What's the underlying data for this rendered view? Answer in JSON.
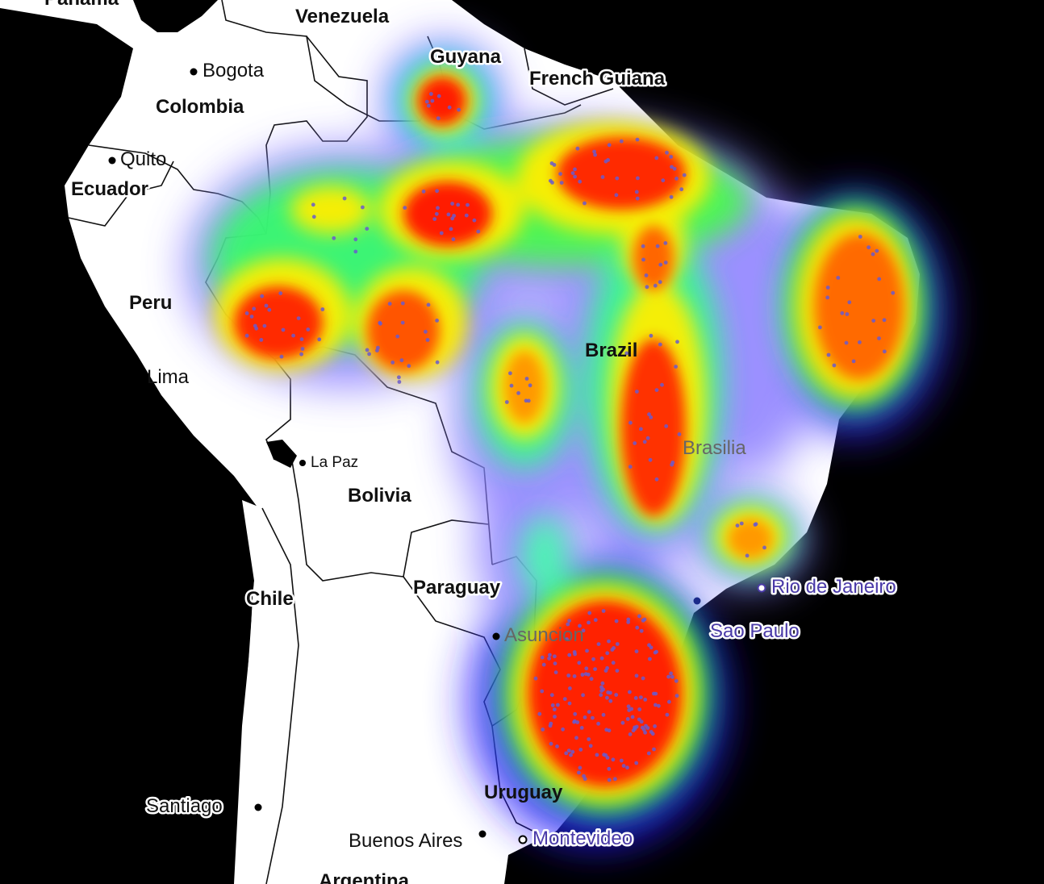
{
  "countries": {
    "venezuela": "Venezuela",
    "guyana": "Guyana",
    "french_guiana": "French Guiana",
    "colombia": "Colombia",
    "ecuador": "Ecuador",
    "peru": "Peru",
    "brazil": "Brazil",
    "bolivia": "Bolivia",
    "paraguay": "Paraguay",
    "chile": "Chile",
    "uruguay": "Uruguay",
    "argentina": "Argentina",
    "panama": "Panama"
  },
  "cities": {
    "bogota": "Bogota",
    "quito": "Quito",
    "lima": "Lima",
    "la_paz": "La Paz",
    "brasilia": "Brasilia",
    "rio": "Rio de Janeiro",
    "sao_paulo": "Sao Paulo",
    "asuncion": "Asuncion",
    "santiago": "Santiago",
    "buenos_aires": "Buenos Aires",
    "montevideo": "Montevideo"
  },
  "colors": {
    "land": "#ffffff",
    "ocean": "#000000",
    "heat_high": "#ff0000",
    "heat_mid": "#ffff00",
    "heat_low": "#00ff00",
    "heat_edge": "#0000ff",
    "point": "#6a5acd"
  }
}
